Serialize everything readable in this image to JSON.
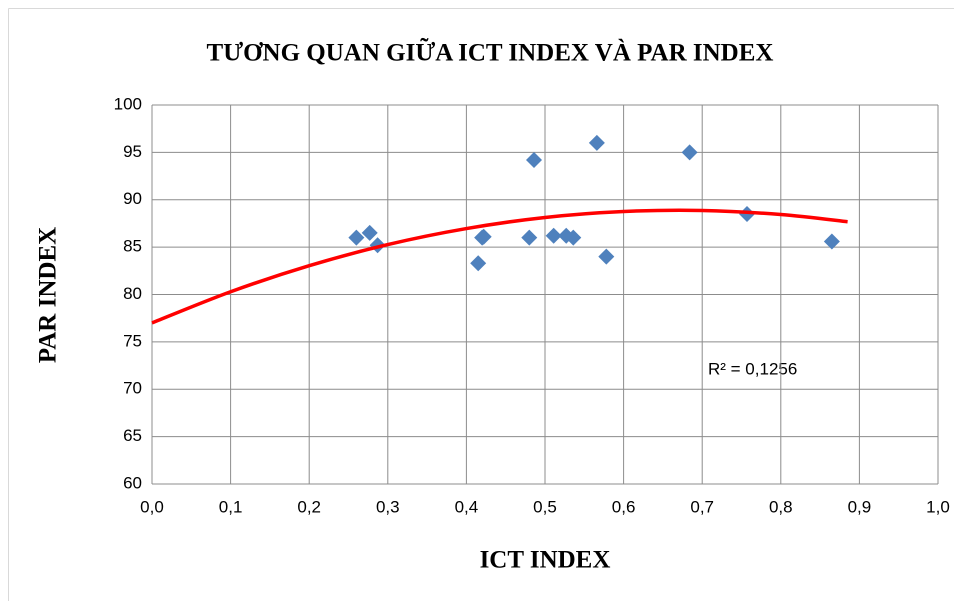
{
  "chart_data": {
    "type": "scatter",
    "title": "TƯƠNG QUAN GIỮA ICT INDEX VÀ PAR INDEX",
    "x_label": "ICT INDEX",
    "y_label": "PAR INDEX",
    "annotation": "R² = 0,1256",
    "series": [
      {
        "name": "PAR INDEX",
        "color": "#4f81bd",
        "x": [
          0.26,
          0.277,
          0.287,
          0.415,
          0.42,
          0.422,
          0.48,
          0.486,
          0.511,
          0.527,
          0.536,
          0.566,
          0.578,
          0.684,
          0.757,
          0.865
        ],
        "values": [
          86.0,
          86.5,
          85.2,
          83.3,
          86.0,
          86.1,
          86.0,
          94.2,
          86.2,
          86.2,
          86.0,
          96.0,
          84.0,
          95.0,
          88.5,
          85.6
        ]
      }
    ],
    "trendline": {
      "color": "#ff0000",
      "x": [
        0,
        0.1,
        0.2,
        0.3,
        0.4,
        0.5,
        0.6,
        0.7,
        0.8,
        0.885
      ],
      "values": [
        77.0,
        80.29,
        83.04,
        85.27,
        86.96,
        88.13,
        88.76,
        88.87,
        88.44,
        87.68
      ]
    },
    "xlim": [
      0,
      1
    ],
    "xticks": [
      {
        "value": 0,
        "label": "0,0"
      },
      {
        "value": 0.1,
        "label": "0,1"
      },
      {
        "value": 0.2,
        "label": "0,2"
      },
      {
        "value": 0.3,
        "label": "0,3"
      },
      {
        "value": 0.4,
        "label": "0,4"
      },
      {
        "value": 0.5,
        "label": "0,5"
      },
      {
        "value": 0.6,
        "label": "0,6"
      },
      {
        "value": 0.7,
        "label": "0,7"
      },
      {
        "value": 0.8,
        "label": "0,8"
      },
      {
        "value": 0.9,
        "label": "0,9"
      },
      {
        "value": 1,
        "label": "1,0"
      }
    ],
    "ylim": [
      60,
      100
    ],
    "yticks": [
      60,
      65,
      70,
      75,
      80,
      85,
      90,
      95,
      100
    ],
    "grid": true
  }
}
